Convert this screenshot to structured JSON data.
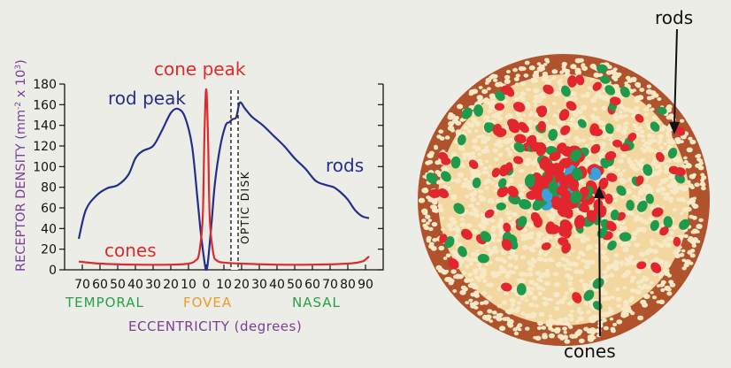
{
  "chart_data": {
    "type": "line",
    "ylabel": "RECEPTOR DENSITY (mm",
    "ylabel_sup1": "-2",
    "ylabel_mid": " x 10",
    "ylabel_sup2": "3",
    "ylabel_end": ")",
    "xlabel": "ECCENTRICITY (degrees)",
    "ylim": [
      0,
      180
    ],
    "yticks": [
      "0",
      "20",
      "40",
      "60",
      "80",
      "100",
      "120",
      "140",
      "160",
      "180"
    ],
    "xticks": [
      "70",
      "60",
      "50",
      "40",
      "30",
      "20",
      "10",
      "0",
      "10",
      "20",
      "30",
      "40",
      "50",
      "60",
      "70",
      "80",
      "90"
    ],
    "region_labels": {
      "temporal": "TEMPORAL",
      "fovea": "FOVEA",
      "nasal": "NASAL"
    },
    "optic_disk_label": "OPTIC DISK",
    "optic_disk_range": [
      14,
      18
    ],
    "series": [
      {
        "name": "rods",
        "color": "#262e8c",
        "x": [
          -72,
          -68,
          -62,
          -56,
          -50,
          -44,
          -40,
          -36,
          -30,
          -25,
          -20,
          -16,
          -12,
          -8,
          -5,
          -3,
          -1,
          0,
          1,
          3,
          5,
          8,
          11,
          13,
          15,
          17,
          19,
          22,
          26,
          32,
          38,
          44,
          50,
          56,
          62,
          68,
          72,
          76,
          80,
          84,
          88,
          92
        ],
        "y": [
          30,
          58,
          72,
          79,
          82,
          92,
          108,
          115,
          120,
          135,
          152,
          156,
          148,
          120,
          70,
          35,
          8,
          0,
          8,
          45,
          85,
          120,
          140,
          143,
          146,
          148,
          162,
          156,
          148,
          140,
          130,
          120,
          108,
          98,
          86,
          82,
          80,
          75,
          68,
          58,
          52,
          50
        ]
      },
      {
        "name": "cones",
        "color": "#dd2a2e",
        "x": [
          -72,
          -60,
          -40,
          -20,
          -10,
          -6,
          -4,
          -2,
          -1,
          0,
          1,
          2,
          4,
          6,
          10,
          20,
          40,
          60,
          80,
          88,
          90,
          92
        ],
        "y": [
          8,
          6,
          5,
          5,
          6,
          9,
          16,
          50,
          130,
          175,
          130,
          50,
          16,
          9,
          7,
          6,
          5,
          5,
          6,
          8,
          10,
          13
        ]
      }
    ],
    "annotations": {
      "rod_peak": "rod peak",
      "cone_peak": "cone peak",
      "rods": "rods",
      "cones": "cones"
    }
  },
  "retina": {
    "rods_label": "rods",
    "cones_label": "cones",
    "colors": {
      "rim": "#b0532c",
      "field": "#f2d8a0",
      "rod": "#f7e8c6",
      "red_cone": "#e3262d",
      "green_cone": "#1e9a4c",
      "blue_cone": "#3aa0d8"
    }
  }
}
